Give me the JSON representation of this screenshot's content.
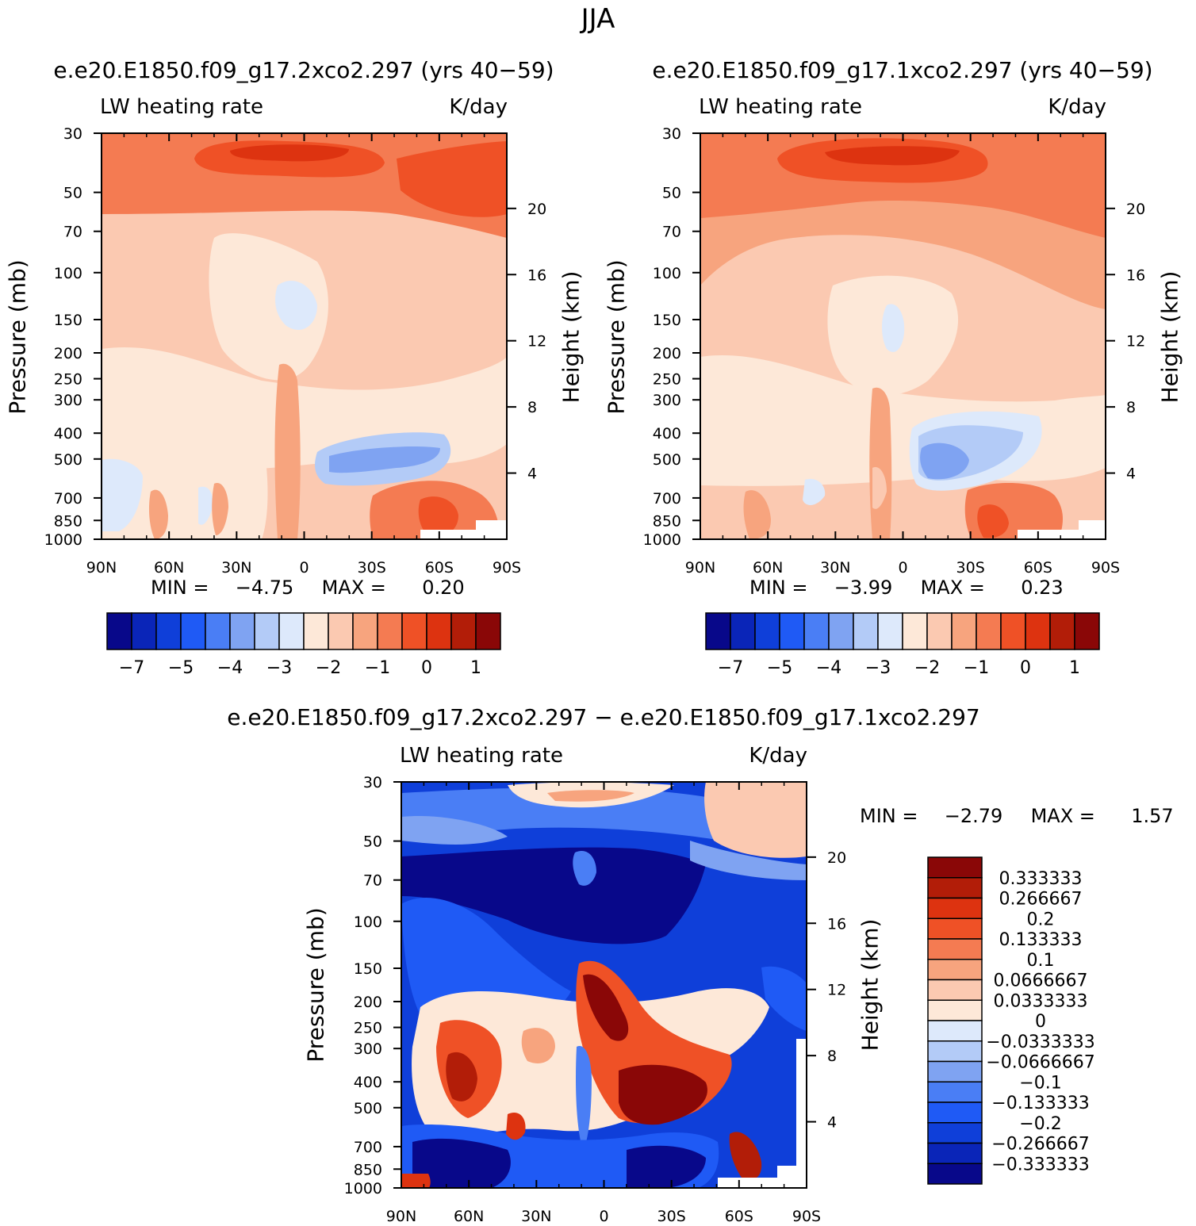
{
  "figure": {
    "season": "JJA",
    "run_a": "e.e20.E1850.f09_g17.2xco2.297 (yrs 40−59)",
    "run_b": "e.e20.E1850.f09_g17.1xco2.297 (yrs 40−59)",
    "diff_title": "e.e20.E1850.f09_g17.2xco2.297 − e.e20.E1850.f09_g17.1xco2.297"
  },
  "colors": {
    "abs_scale": [
      "#08088a",
      "#0a25b8",
      "#0f3fd9",
      "#1f5af5",
      "#4a7ef5",
      "#7fa3f2",
      "#b3cbf7",
      "#dde9fb",
      "#fde8d8",
      "#fbc9b1",
      "#f7a47e",
      "#f47b52",
      "#ef5126",
      "#dd3310",
      "#b21d08",
      "#8a0707"
    ],
    "diff_scale": [
      "#08088a",
      "#0a25b8",
      "#0f3fd9",
      "#1f5af5",
      "#4a7ef5",
      "#7fa3f2",
      "#b3cbf7",
      "#dde9fb",
      "#fde8d8",
      "#fbc9b1",
      "#f7a47e",
      "#f47b52",
      "#ef5126",
      "#dd3310",
      "#b21d08",
      "#8a0707"
    ]
  },
  "chart_data": [
    {
      "type": "heatmap",
      "id": "left",
      "title": "e.e20.E1850.f09_g17.2xco2.297 (yrs 40−59)",
      "left_label": "LW heating rate",
      "right_label": "K/day",
      "ylabel": "Pressure (mb)",
      "y2label": "Height (km)",
      "x_ticks": [
        "90N",
        "60N",
        "30N",
        "0",
        "30S",
        "60S",
        "90S"
      ],
      "xlim": [
        90,
        -90
      ],
      "y_ticks": [
        30,
        50,
        70,
        100,
        150,
        200,
        250,
        300,
        400,
        500,
        700,
        850,
        1000
      ],
      "ylim": [
        1000,
        30
      ],
      "y2_ticks": [
        20,
        16,
        12,
        8,
        4
      ],
      "stats": {
        "min_label": "MIN =",
        "min": "−4.75",
        "max_label": "MAX =",
        "max": "0.20"
      },
      "colorbar": {
        "orientation": "horizontal",
        "labels": [
          "−7",
          "−5",
          "−4",
          "−3",
          "−2",
          "−1",
          "0",
          "1"
        ]
      }
    },
    {
      "type": "heatmap",
      "id": "right",
      "title": "e.e20.E1850.f09_g17.1xco2.297 (yrs 40−59)",
      "left_label": "LW heating rate",
      "right_label": "K/day",
      "ylabel": "Pressure (mb)",
      "y2label": "Height (km)",
      "x_ticks": [
        "90N",
        "60N",
        "30N",
        "0",
        "30S",
        "60S",
        "90S"
      ],
      "xlim": [
        90,
        -90
      ],
      "y_ticks": [
        30,
        50,
        70,
        100,
        150,
        200,
        250,
        300,
        400,
        500,
        700,
        850,
        1000
      ],
      "ylim": [
        1000,
        30
      ],
      "y2_ticks": [
        20,
        16,
        12,
        8,
        4
      ],
      "stats": {
        "min_label": "MIN =",
        "min": "−3.99",
        "max_label": "MAX =",
        "max": "0.23"
      },
      "colorbar": {
        "orientation": "horizontal",
        "labels": [
          "−7",
          "−5",
          "−4",
          "−3",
          "−2",
          "−1",
          "0",
          "1"
        ]
      }
    },
    {
      "type": "heatmap",
      "id": "diff",
      "title": "e.e20.E1850.f09_g17.2xco2.297 − e.e20.E1850.f09_g17.1xco2.297",
      "left_label": "LW heating rate",
      "right_label": "K/day",
      "ylabel": "Pressure (mb)",
      "y2label": "Height (km)",
      "x_ticks": [
        "90N",
        "60N",
        "30N",
        "0",
        "30S",
        "60S",
        "90S"
      ],
      "xlim": [
        90,
        -90
      ],
      "y_ticks": [
        30,
        50,
        70,
        100,
        150,
        200,
        250,
        300,
        400,
        500,
        700,
        850,
        1000
      ],
      "ylim": [
        1000,
        30
      ],
      "y2_ticks": [
        20,
        16,
        12,
        8,
        4
      ],
      "stats": {
        "min_label": "MIN =",
        "min": "−2.79",
        "max_label": "MAX =",
        "max": "1.57"
      },
      "colorbar": {
        "orientation": "vertical",
        "labels": [
          "0.333333",
          "0.266667",
          "0.2",
          "0.133333",
          "0.1",
          "0.0666667",
          "0.0333333",
          "0",
          "−0.0333333",
          "−0.0666667",
          "−0.1",
          "−0.133333",
          "−0.2",
          "−0.266667",
          "−0.333333"
        ]
      }
    }
  ]
}
